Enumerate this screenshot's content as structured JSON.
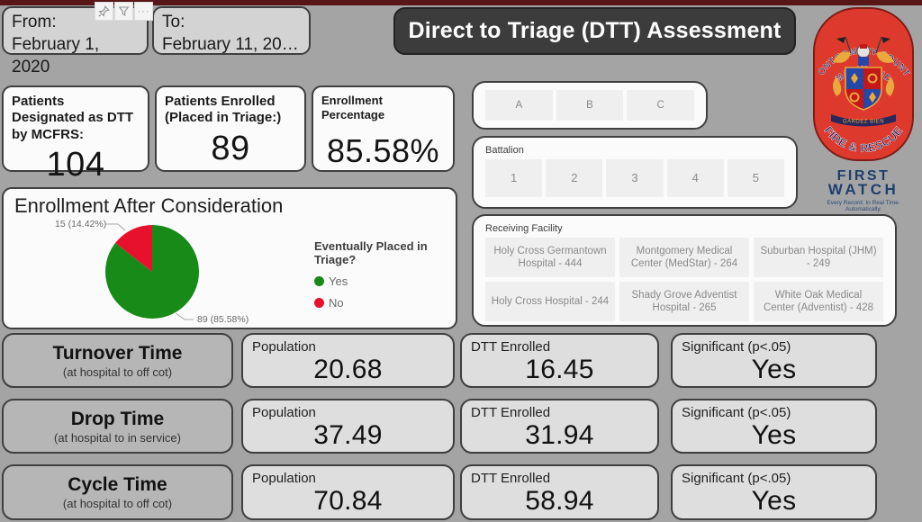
{
  "title": "Direct to Triage (DTT) Assessment",
  "date_filters": {
    "from_label": "From:",
    "from_value": "February 1, 2020",
    "to_label": "To:",
    "to_value": "February 11, 20…"
  },
  "visual_header_icons": [
    "pin",
    "filter",
    "more-options"
  ],
  "kpi_cards": [
    {
      "label": "Patients Designated as DTT by MCFRS:",
      "value": "104"
    },
    {
      "label": "Patients Enrolled (Placed in Triage:)",
      "value": "89"
    },
    {
      "label": "Enrollment Percentage",
      "value": "85.58%"
    }
  ],
  "slicers": {
    "shift": {
      "options": [
        "A",
        "B",
        "C"
      ]
    },
    "battalion": {
      "label": "Battalion",
      "options": [
        "1",
        "2",
        "3",
        "4",
        "5"
      ]
    },
    "receiving_facility": {
      "label": "Receiving Facility",
      "options": [
        "Holy Cross Germantown Hospital - 444",
        "Montgomery Medical Center (MedStar) - 264",
        "Suburban Hospital (JHM) - 249",
        "Holy Cross Hospital - 244",
        "Shady Grove Adventist Hospital - 265",
        "White Oak Medical Center (Adventist) - 428"
      ]
    }
  },
  "chart_data": {
    "type": "pie",
    "title": "Enrollment After Consideration",
    "legend_title": "Eventually Placed in Triage?",
    "legend_position": "right",
    "categories": [
      "Yes",
      "No"
    ],
    "values": [
      89,
      15
    ],
    "percentages": [
      "85.58%",
      "14.42%"
    ],
    "slice_labels": [
      "89 (85.58%)",
      "15 (14.42%)"
    ],
    "colors": [
      "#178a17",
      "#e8112d"
    ]
  },
  "metrics": {
    "columns": [
      "Population",
      "DTT Enrolled",
      "Significant (p<.05)"
    ],
    "rows": [
      {
        "label": "Turnover Time",
        "sublabel": "(at hospital to off cot)",
        "population": "20.68",
        "dtt_enrolled": "16.45",
        "significant": "Yes"
      },
      {
        "label": "Drop Time",
        "sublabel": "(at hospital to in service)",
        "population": "37.49",
        "dtt_enrolled": "31.94",
        "significant": "Yes"
      },
      {
        "label": "Cycle Time",
        "sublabel": "(at hospital to off cot)",
        "population": "70.84",
        "dtt_enrolled": "58.94",
        "significant": "Yes"
      }
    ]
  },
  "branding": {
    "mcfrs": {
      "top_text": "MONTGOMERY COUNTY",
      "mid_text": "MARYLAND",
      "bottom_text": "FIRE & RESCUE",
      "motto": "GARDEZ BIEN",
      "badge_color": "#dd3a2d"
    },
    "firstwatch": {
      "line1": "FIRST",
      "line2": "WATCH",
      "tagline": "Every Record. In Real Time. Automatically.",
      "color": "#1e3f6e"
    }
  }
}
